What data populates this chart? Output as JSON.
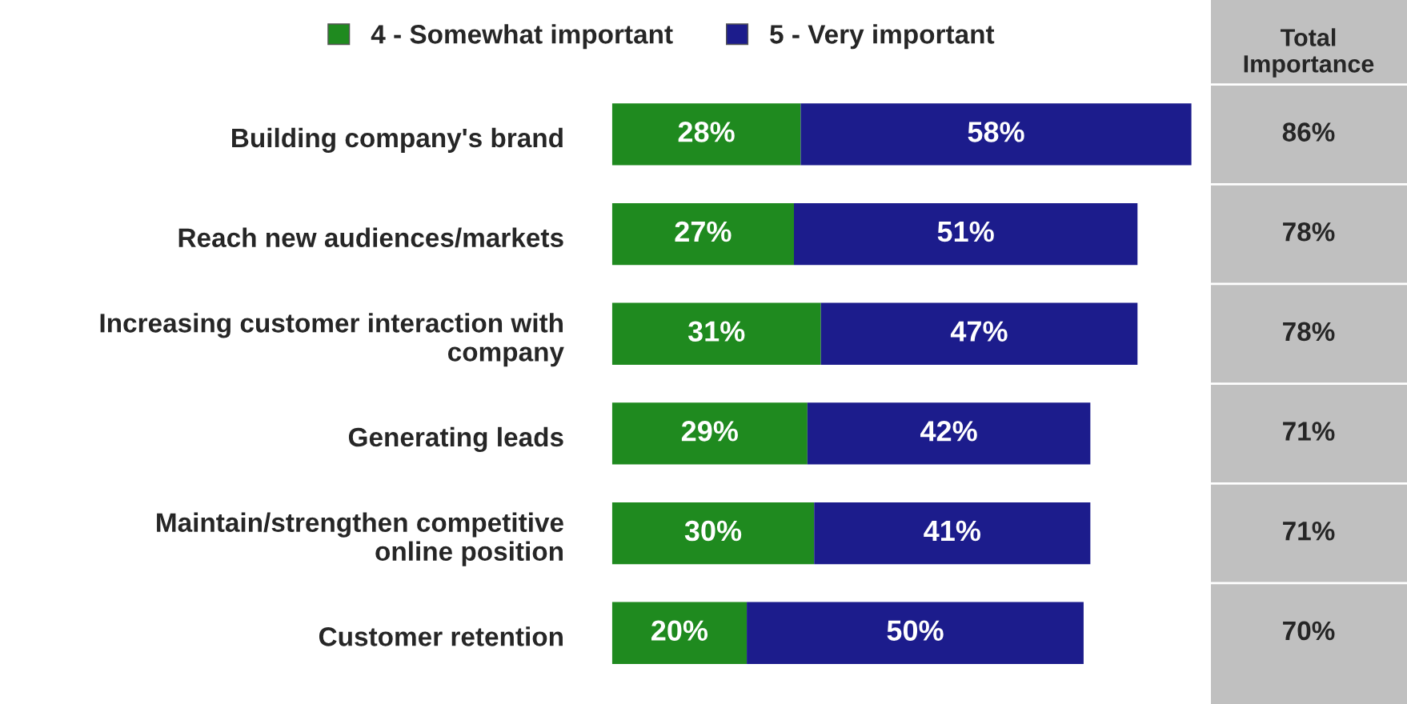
{
  "chart_data": {
    "type": "bar",
    "orientation": "horizontal",
    "stacked": true,
    "legend": "top",
    "categories": [
      "Building company's brand",
      "Reach new audiences/markets",
      "Increasing customer interaction with company",
      "Generating leads",
      "Maintain/strengthen competitive online position",
      "Customer retention"
    ],
    "series": [
      {
        "name": "4 - Somewhat important",
        "color": "#1f8a1f",
        "values": [
          28,
          27,
          31,
          29,
          30,
          20
        ],
        "value_labels": [
          "28%",
          "27%",
          "31%",
          "29%",
          "30%",
          "20%"
        ]
      },
      {
        "name": "5 - Very important",
        "color": "#1c1c8c",
        "values": [
          58,
          51,
          47,
          42,
          41,
          50
        ],
        "value_labels": [
          "58%",
          "51%",
          "47%",
          "42%",
          "41%",
          "50%"
        ]
      }
    ],
    "annotations": [
      "Total Importance",
      "86%",
      "78%",
      "78%",
      "71%",
      "71%",
      "70%"
    ]
  }
}
